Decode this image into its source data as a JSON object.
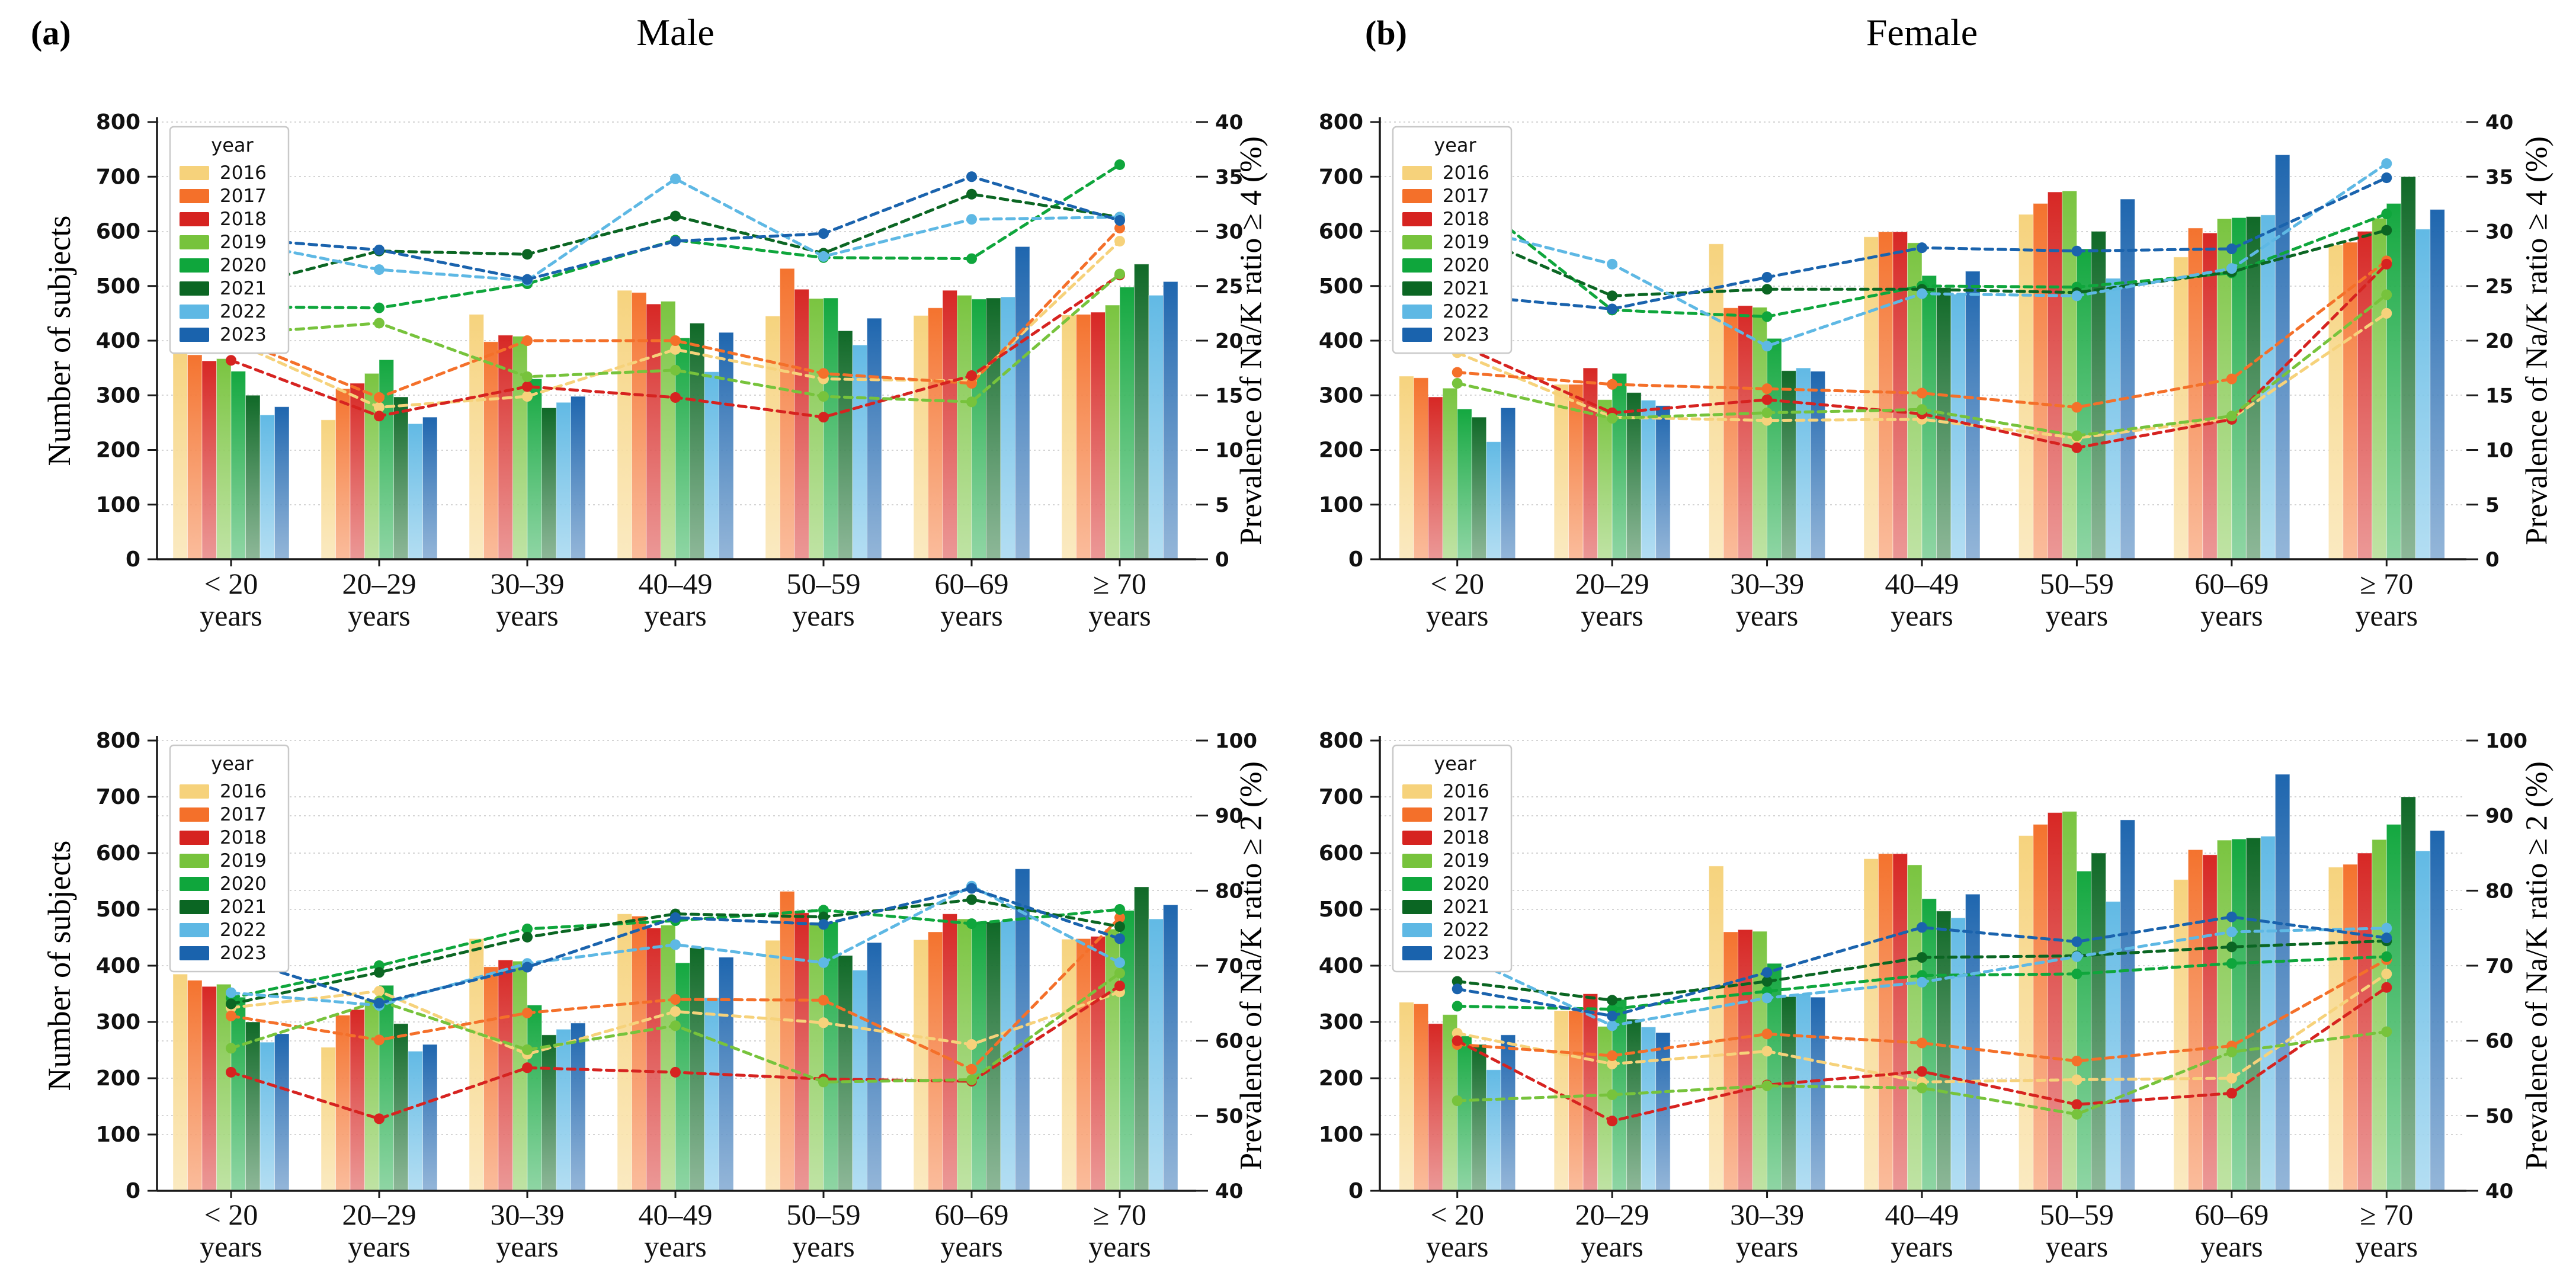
{
  "figure": {
    "panels": [
      {
        "tag": "(a)",
        "title": "Male"
      },
      {
        "tag": "(b)",
        "title": "Female"
      }
    ],
    "left_axis_label": "Number of subjects",
    "right_axis_label_ge4": "Prevalence of Na/K ratio ≥ 4 (%)",
    "right_axis_label_ge2": "Prevalence of Na/K ratio ≥ 2 (%)",
    "legend_title": "year"
  },
  "years": [
    "2016",
    "2017",
    "2018",
    "2019",
    "2020",
    "2021",
    "2022",
    "2023"
  ],
  "year_colors": {
    "2016": "#F6D27B",
    "2017": "#F4702A",
    "2018": "#D62320",
    "2019": "#77C33C",
    "2020": "#0FA63C",
    "2021": "#0B6623",
    "2022": "#5EB8E4",
    "2023": "#1A63AD"
  },
  "age_groups": [
    "< 20",
    "20–29",
    "30–39",
    "40–49",
    "50–59",
    "60–69",
    "≥ 70"
  ],
  "age_group_sub": "years",
  "left_axis": {
    "min": 0,
    "max": 800,
    "step": 100
  },
  "chart_data": [
    {
      "id": "male-ge4",
      "type": "bar+line",
      "col": "a",
      "row": "top",
      "title": "Male",
      "bars": "male_subjects",
      "lines": "male_ge4",
      "right_axis": {
        "min": 0,
        "max": 40,
        "step": 5
      },
      "right_label": "Prevalence of Na/K ratio ≥ 4 (%)",
      "left_label": "Number of subjects"
    },
    {
      "id": "male-ge2",
      "type": "bar+line",
      "col": "a",
      "row": "bottom",
      "title": "Male",
      "bars": "male_subjects",
      "lines": "male_ge2",
      "right_axis": {
        "min": 40,
        "max": 100,
        "step": 10
      },
      "right_label": "Prevalence of Na/K ratio ≥ 2 (%)",
      "left_label": "Number of subjects"
    },
    {
      "id": "female-ge4",
      "type": "bar+line",
      "col": "b",
      "row": "top",
      "title": "Female",
      "bars": "female_subjects",
      "lines": "female_ge4",
      "right_axis": {
        "min": 0,
        "max": 40,
        "step": 5
      },
      "right_label": "Prevalence of Na/K ratio ≥ 4 (%)",
      "left_label": ""
    },
    {
      "id": "female-ge2",
      "type": "bar+line",
      "col": "b",
      "row": "bottom",
      "title": "Female",
      "bars": "female_subjects",
      "lines": "female_ge2",
      "right_axis": {
        "min": 40,
        "max": 100,
        "step": 10
      },
      "right_label": "Prevalence of Na/K ratio ≥ 2 (%)",
      "left_label": ""
    }
  ],
  "series": {
    "male_subjects": {
      "2016": [
        385,
        255,
        448,
        492,
        445,
        446,
        447
      ],
      "2017": [
        374,
        312,
        398,
        488,
        532,
        460,
        448
      ],
      "2018": [
        363,
        322,
        410,
        467,
        494,
        492,
        452
      ],
      "2019": [
        367,
        340,
        408,
        472,
        477,
        483,
        465
      ],
      "2020": [
        344,
        365,
        330,
        405,
        478,
        476,
        498
      ],
      "2021": [
        300,
        297,
        277,
        432,
        418,
        478,
        540
      ],
      "2022": [
        264,
        248,
        287,
        343,
        392,
        480,
        483
      ],
      "2023": [
        279,
        260,
        298,
        415,
        441,
        572,
        508
      ]
    },
    "female_subjects": {
      "2016": [
        335,
        320,
        577,
        590,
        631,
        553,
        575
      ],
      "2017": [
        332,
        320,
        460,
        599,
        651,
        606,
        580
      ],
      "2018": [
        297,
        350,
        464,
        599,
        672,
        597,
        600
      ],
      "2019": [
        313,
        292,
        461,
        579,
        674,
        623,
        624
      ],
      "2020": [
        275,
        340,
        404,
        519,
        568,
        625,
        651
      ],
      "2021": [
        260,
        305,
        345,
        497,
        600,
        627,
        700
      ],
      "2022": [
        215,
        291,
        350,
        485,
        514,
        630,
        604
      ],
      "2023": [
        277,
        281,
        344,
        527,
        659,
        740,
        640
      ]
    },
    "male_ge4": {
      "2016": [
        20.0,
        13.9,
        14.9,
        19.2,
        16.5,
        16.3,
        29.1
      ],
      "2017": [
        20.3,
        14.8,
        20.0,
        20.0,
        17.0,
        16.1,
        30.3
      ],
      "2018": [
        18.2,
        13.1,
        15.8,
        14.8,
        13.0,
        16.8,
        26.0
      ],
      "2019": [
        20.6,
        21.6,
        16.7,
        17.3,
        14.9,
        14.4,
        26.1
      ],
      "2020": [
        23.1,
        23.0,
        25.2,
        29.2,
        27.6,
        27.5,
        36.1
      ],
      "2021": [
        24.7,
        28.2,
        27.9,
        31.4,
        28.0,
        33.4,
        31.3
      ],
      "2022": [
        29.2,
        26.5,
        25.5,
        34.8,
        27.7,
        31.1,
        31.3
      ],
      "2023": [
        29.4,
        28.3,
        25.6,
        29.1,
        29.8,
        35.0,
        31.0
      ]
    },
    "male_ge2": {
      "2016": [
        64.4,
        66.6,
        58.2,
        63.9,
        62.4,
        59.5,
        66.5
      ],
      "2017": [
        63.3,
        60.1,
        63.7,
        65.5,
        65.4,
        56.2,
        76.4
      ],
      "2018": [
        55.8,
        49.6,
        56.4,
        55.8,
        54.9,
        54.6,
        67.3
      ],
      "2019": [
        59.0,
        65.3,
        58.8,
        62.0,
        54.5,
        54.8,
        69.0
      ],
      "2020": [
        65.7,
        70.0,
        74.9,
        76.0,
        77.4,
        75.6,
        77.5
      ],
      "2021": [
        64.9,
        69.1,
        73.8,
        76.9,
        76.5,
        78.8,
        75.2
      ],
      "2022": [
        66.4,
        64.7,
        70.3,
        72.8,
        70.4,
        80.6,
        70.4
      ],
      "2023": [
        71.2,
        65.0,
        69.8,
        76.4,
        75.5,
        80.3,
        73.6
      ]
    },
    "female_ge4": {
      "2016": [
        18.9,
        13.0,
        12.7,
        12.8,
        11.1,
        12.9,
        22.5
      ],
      "2017": [
        17.1,
        16.0,
        15.6,
        15.2,
        13.9,
        16.5,
        27.3
      ],
      "2018": [
        19.7,
        13.4,
        14.6,
        13.3,
        10.2,
        12.8,
        27.0
      ],
      "2019": [
        16.1,
        12.9,
        13.4,
        13.7,
        11.3,
        13.1,
        24.2
      ],
      "2020": [
        34.0,
        22.8,
        22.2,
        25.0,
        24.9,
        26.2,
        31.6
      ],
      "2021": [
        30.2,
        24.1,
        24.7,
        24.7,
        24.4,
        26.3,
        30.1
      ],
      "2022": [
        30.6,
        27.0,
        19.5,
        24.3,
        24.1,
        26.6,
        36.2
      ],
      "2023": [
        24.2,
        22.9,
        25.8,
        28.5,
        28.2,
        28.4,
        34.9
      ]
    },
    "female_ge2": {
      "2016": [
        61.0,
        56.9,
        58.6,
        54.5,
        54.8,
        55.0,
        68.9
      ],
      "2017": [
        59.5,
        58.0,
        60.9,
        59.7,
        57.3,
        59.3,
        70.8
      ],
      "2018": [
        60.0,
        49.3,
        54.1,
        55.9,
        51.5,
        53.0,
        67.1
      ],
      "2019": [
        52.0,
        52.8,
        54.0,
        53.7,
        50.2,
        58.5,
        61.2
      ],
      "2020": [
        64.6,
        64.2,
        66.6,
        68.7,
        68.9,
        70.3,
        71.2
      ],
      "2021": [
        67.9,
        65.4,
        67.9,
        71.1,
        71.3,
        72.5,
        73.3
      ],
      "2022": [
        71.7,
        62.0,
        65.7,
        67.8,
        71.2,
        74.5,
        75.0
      ],
      "2023": [
        66.9,
        63.3,
        69.1,
        75.1,
        73.2,
        76.5,
        73.7
      ]
    }
  }
}
